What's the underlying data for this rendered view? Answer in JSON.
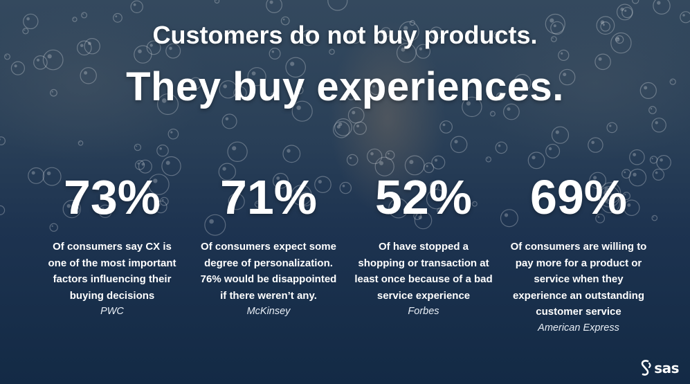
{
  "headline": {
    "line1": "Customers do not buy products.",
    "line2": "They buy experiences."
  },
  "stats": [
    {
      "value": "73%",
      "description": "Of consumers say CX is one of the most important factors influencing their buying decisions",
      "source": "PWC"
    },
    {
      "value": "71%",
      "description": "Of consumers expect some degree of personalization. 76% would be disappointed if there weren’t any.",
      "source": "McKinsey"
    },
    {
      "value": "52%",
      "description": "Of have stopped a shopping or transaction at least once because of a bad service experience",
      "source": "Forbes"
    },
    {
      "value": "69%",
      "description": "Of consumers are willing to pay more for a product or service when they experience an outstanding customer service",
      "source": "American Express"
    }
  ],
  "logo": {
    "text": "sas",
    "icon": "sas-logo-icon"
  },
  "colors": {
    "background_top": "#34495e",
    "background_bottom": "#132a45",
    "text": "#ffffff"
  }
}
